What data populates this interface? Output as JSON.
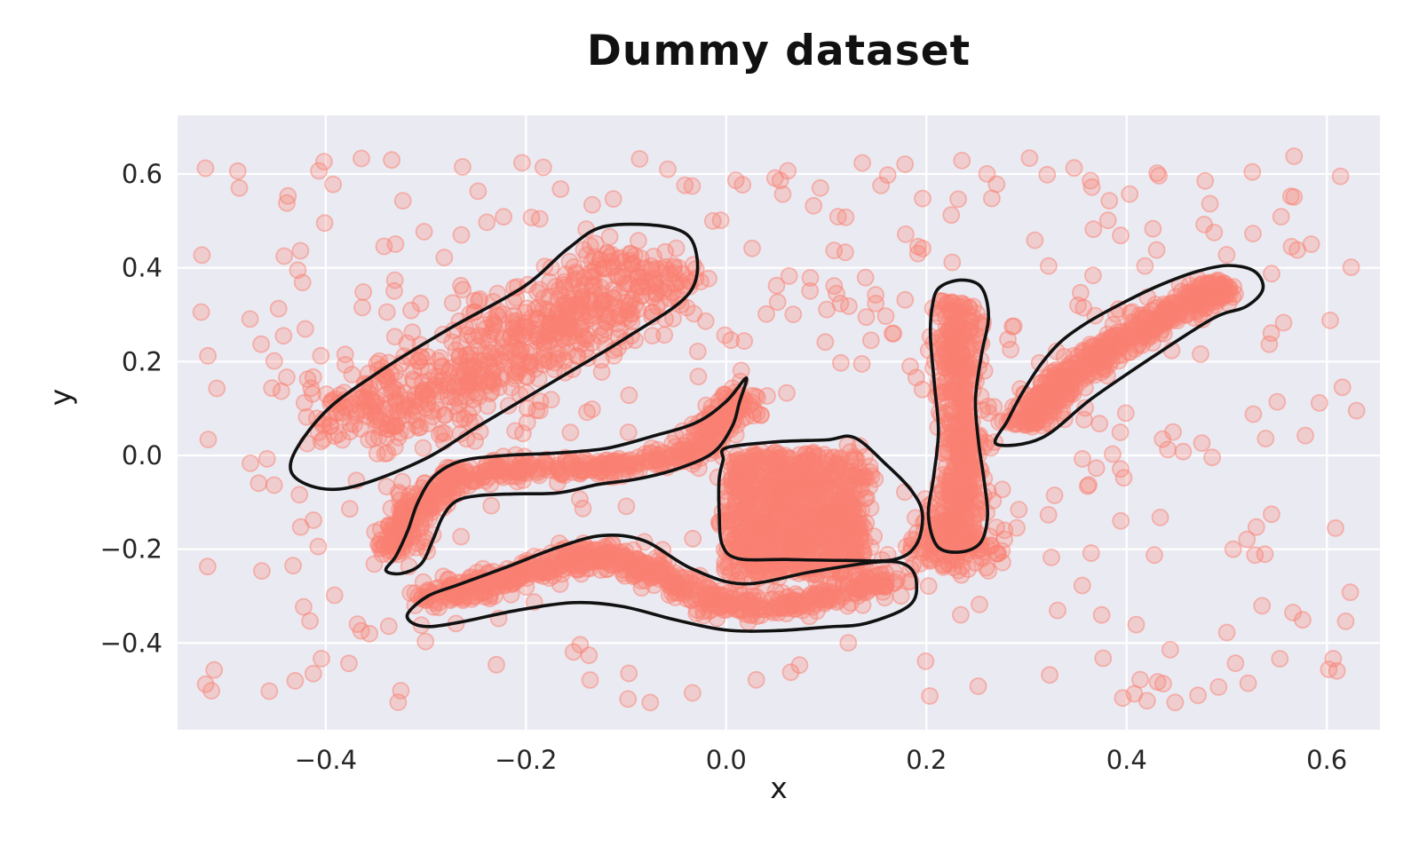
{
  "chart_data": {
    "type": "scatter",
    "title": "Dummy dataset",
    "xlabel": "x",
    "ylabel": "y",
    "xlim": [
      -0.548,
      0.653
    ],
    "ylim": [
      -0.585,
      0.725
    ],
    "x_ticks": [
      -0.4,
      -0.2,
      0.0,
      0.2,
      0.4,
      0.6
    ],
    "y_ticks": [
      -0.4,
      -0.2,
      0.0,
      0.2,
      0.4,
      0.6
    ],
    "grid": true,
    "legend": false,
    "seed": 7,
    "styles": {
      "plot_bg": "#eaeaf2",
      "grid_color": "#ffffff",
      "grid_width": 2.2,
      "point_color": "#fa8072",
      "point_fill_alpha": 0.28,
      "point_edge_alpha": 0.5,
      "point_radius": 9,
      "point_edge_width": 1.8,
      "outline_color": "#111111",
      "outline_width": 3.6,
      "tick_color": "#262626",
      "tick_font_size": 29,
      "title_color": "#111111"
    },
    "noise": {
      "count": 430,
      "x_range": [
        -0.525,
        0.63
      ],
      "y_range": [
        -0.53,
        0.64
      ]
    },
    "clusters": [
      {
        "name": "diagonal-band-upper-left",
        "type": "band",
        "count": 680,
        "sigma": 0.04,
        "path": [
          [
            -0.375,
            0.065
          ],
          [
            -0.315,
            0.13
          ],
          [
            -0.26,
            0.185
          ],
          [
            -0.205,
            0.245
          ],
          [
            -0.15,
            0.295
          ],
          [
            -0.1,
            0.35
          ],
          [
            -0.068,
            0.41
          ]
        ]
      },
      {
        "name": "snake-band-left",
        "type": "band",
        "count": 560,
        "sigma": 0.012,
        "path": [
          [
            -0.328,
            -0.205
          ],
          [
            -0.315,
            -0.125
          ],
          [
            -0.295,
            -0.072
          ],
          [
            -0.27,
            -0.045
          ],
          [
            -0.238,
            -0.036
          ],
          [
            -0.198,
            -0.03
          ],
          [
            -0.15,
            -0.027
          ],
          [
            -0.108,
            -0.024
          ],
          [
            -0.058,
            -0.008
          ],
          [
            -0.018,
            0.032
          ],
          [
            0.004,
            0.088
          ],
          [
            0.012,
            0.132
          ]
        ]
      },
      {
        "name": "wavy-band-bottom",
        "type": "band",
        "count": 680,
        "sigma": 0.013,
        "path": [
          [
            -0.308,
            -0.3
          ],
          [
            -0.252,
            -0.285
          ],
          [
            -0.186,
            -0.24
          ],
          [
            -0.122,
            -0.206
          ],
          [
            -0.062,
            -0.258
          ],
          [
            -0.002,
            -0.318
          ],
          [
            0.058,
            -0.325
          ],
          [
            0.104,
            -0.3
          ],
          [
            0.168,
            -0.265
          ]
        ]
      },
      {
        "name": "square-cluster-center",
        "type": "rect",
        "count": 900,
        "jitter": 0.008,
        "x_range": [
          0.002,
          0.138
        ],
        "y_range": [
          -0.255,
          0.005
        ]
      },
      {
        "name": "vertical-band-right",
        "type": "band",
        "count": 470,
        "sigma": 0.011,
        "path": [
          [
            0.236,
            0.325
          ],
          [
            0.228,
            0.24
          ],
          [
            0.23,
            0.15
          ],
          [
            0.236,
            0.06
          ],
          [
            0.24,
            -0.02
          ],
          [
            0.232,
            -0.1
          ],
          [
            0.224,
            -0.16
          ]
        ]
      },
      {
        "name": "vertical-band-foot",
        "type": "gauss",
        "count": 140,
        "center": [
          0.225,
          -0.19
        ],
        "sx": 0.022,
        "sy": 0.03
      },
      {
        "name": "diagonal-band-upper-right",
        "type": "band",
        "count": 520,
        "sigma": 0.012,
        "path": [
          [
            0.296,
            0.062
          ],
          [
            0.316,
            0.115
          ],
          [
            0.346,
            0.175
          ],
          [
            0.386,
            0.235
          ],
          [
            0.43,
            0.285
          ],
          [
            0.468,
            0.328
          ],
          [
            0.5,
            0.365
          ]
        ]
      }
    ],
    "outlines": [
      {
        "name": "outline-upper-left-blob",
        "points": [
          [
            -0.12,
            0.489
          ],
          [
            -0.054,
            0.485
          ],
          [
            -0.031,
            0.441
          ],
          [
            -0.037,
            0.346
          ],
          [
            -0.099,
            0.252
          ],
          [
            -0.173,
            0.157
          ],
          [
            -0.247,
            0.063
          ],
          [
            -0.306,
            -0.013
          ],
          [
            -0.38,
            -0.07
          ],
          [
            -0.424,
            -0.057
          ],
          [
            -0.434,
            -0.008
          ],
          [
            -0.4,
            0.094
          ],
          [
            -0.344,
            0.182
          ],
          [
            -0.276,
            0.271
          ],
          [
            -0.202,
            0.36
          ],
          [
            -0.158,
            0.441
          ]
        ]
      },
      {
        "name": "outline-snake-tube",
        "points": [
          [
            0.02,
            0.165
          ],
          [
            0.0,
            0.115
          ],
          [
            -0.03,
            0.07
          ],
          [
            -0.075,
            0.04
          ],
          [
            -0.12,
            0.015
          ],
          [
            -0.17,
            0.005
          ],
          [
            -0.22,
            0.0
          ],
          [
            -0.265,
            -0.012
          ],
          [
            -0.292,
            -0.045
          ],
          [
            -0.308,
            -0.1
          ],
          [
            -0.318,
            -0.16
          ],
          [
            -0.33,
            -0.215
          ],
          [
            -0.34,
            -0.245
          ],
          [
            -0.325,
            -0.252
          ],
          [
            -0.305,
            -0.232
          ],
          [
            -0.293,
            -0.18
          ],
          [
            -0.283,
            -0.13
          ],
          [
            -0.27,
            -0.098
          ],
          [
            -0.248,
            -0.086
          ],
          [
            -0.21,
            -0.082
          ],
          [
            -0.168,
            -0.08
          ],
          [
            -0.128,
            -0.062
          ],
          [
            -0.088,
            -0.05
          ],
          [
            -0.048,
            -0.028
          ],
          [
            -0.013,
            0.006
          ],
          [
            0.006,
            0.062
          ],
          [
            0.013,
            0.112
          ]
        ]
      },
      {
        "name": "outline-bottom-wavy-tube",
        "points": [
          [
            -0.318,
            -0.337
          ],
          [
            -0.298,
            -0.3
          ],
          [
            -0.268,
            -0.276
          ],
          [
            -0.218,
            -0.237
          ],
          [
            -0.168,
            -0.196
          ],
          [
            -0.124,
            -0.171
          ],
          [
            -0.082,
            -0.182
          ],
          [
            -0.035,
            -0.241
          ],
          [
            0.017,
            -0.274
          ],
          [
            0.086,
            -0.248
          ],
          [
            0.152,
            -0.227
          ],
          [
            0.18,
            -0.234
          ],
          [
            0.19,
            -0.27
          ],
          [
            0.183,
            -0.32
          ],
          [
            0.14,
            -0.358
          ],
          [
            0.1,
            -0.366
          ],
          [
            0.048,
            -0.374
          ],
          [
            -0.002,
            -0.372
          ],
          [
            -0.052,
            -0.35
          ],
          [
            -0.104,
            -0.322
          ],
          [
            -0.152,
            -0.314
          ],
          [
            -0.208,
            -0.33
          ],
          [
            -0.262,
            -0.354
          ],
          [
            -0.295,
            -0.365
          ],
          [
            -0.313,
            -0.358
          ]
        ]
      },
      {
        "name": "outline-square-blob",
        "points": [
          [
            0.0,
            0.016
          ],
          [
            0.05,
            0.029
          ],
          [
            0.1,
            0.033
          ],
          [
            0.128,
            0.038
          ],
          [
            0.16,
            -0.02
          ],
          [
            0.185,
            -0.075
          ],
          [
            0.196,
            -0.125
          ],
          [
            0.19,
            -0.19
          ],
          [
            0.168,
            -0.222
          ],
          [
            0.12,
            -0.224
          ],
          [
            0.06,
            -0.222
          ],
          [
            0.012,
            -0.22
          ],
          [
            -0.004,
            -0.19
          ],
          [
            -0.007,
            -0.12
          ],
          [
            -0.007,
            -0.05
          ],
          [
            -0.003,
            -0.01
          ]
        ]
      },
      {
        "name": "outline-vertical-blob",
        "points": [
          [
            0.213,
            0.358
          ],
          [
            0.235,
            0.374
          ],
          [
            0.255,
            0.358
          ],
          [
            0.262,
            0.295
          ],
          [
            0.255,
            0.215
          ],
          [
            0.249,
            0.12
          ],
          [
            0.252,
            0.03
          ],
          [
            0.258,
            -0.06
          ],
          [
            0.261,
            -0.13
          ],
          [
            0.254,
            -0.186
          ],
          [
            0.234,
            -0.206
          ],
          [
            0.211,
            -0.194
          ],
          [
            0.202,
            -0.128
          ],
          [
            0.207,
            -0.048
          ],
          [
            0.212,
            0.05
          ],
          [
            0.208,
            0.152
          ],
          [
            0.204,
            0.255
          ],
          [
            0.206,
            0.32
          ]
        ]
      },
      {
        "name": "outline-upper-right-blob",
        "points": [
          [
            0.27,
            0.024
          ],
          [
            0.281,
            0.074
          ],
          [
            0.296,
            0.134
          ],
          [
            0.315,
            0.196
          ],
          [
            0.335,
            0.244
          ],
          [
            0.362,
            0.285
          ],
          [
            0.396,
            0.325
          ],
          [
            0.432,
            0.362
          ],
          [
            0.47,
            0.392
          ],
          [
            0.502,
            0.405
          ],
          [
            0.528,
            0.392
          ],
          [
            0.536,
            0.354
          ],
          [
            0.519,
            0.317
          ],
          [
            0.487,
            0.293
          ],
          [
            0.426,
            0.21
          ],
          [
            0.365,
            0.121
          ],
          [
            0.315,
            0.037
          ]
        ]
      }
    ]
  }
}
